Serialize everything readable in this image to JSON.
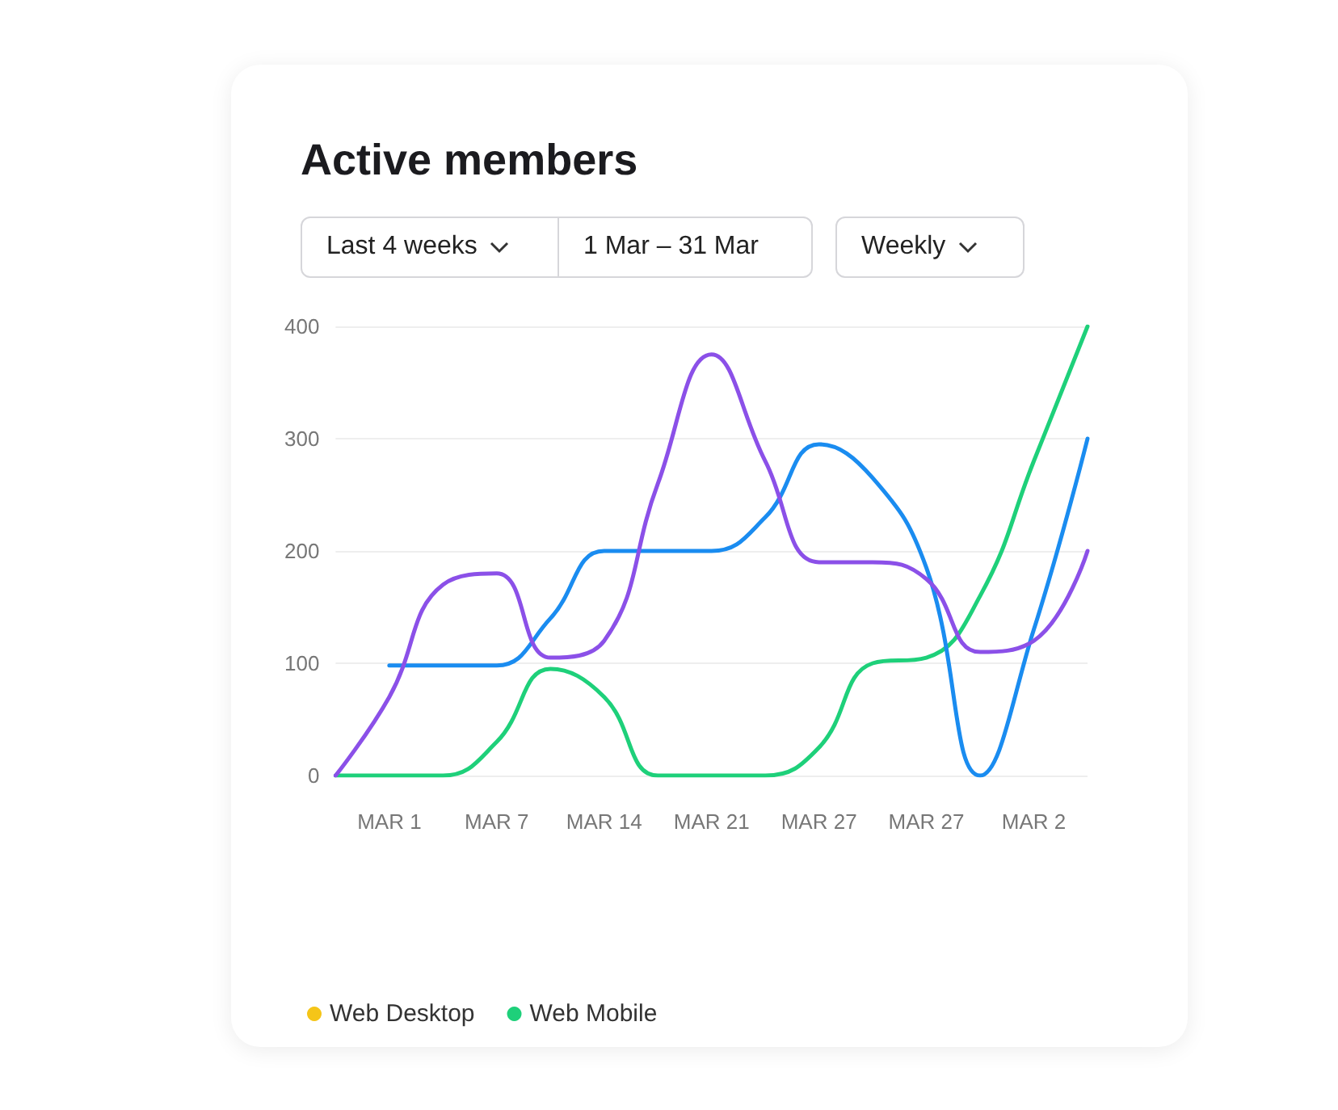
{
  "chart_data": {
    "type": "line",
    "title": "Active members",
    "annotations": [
      "Last 4 weeks",
      "1 Mar  –  31 Mar",
      "Weekly"
    ],
    "ylim": [
      0,
      400
    ],
    "yticks": [
      0,
      100,
      200,
      300,
      400
    ],
    "categories": [
      null,
      "MAR 1",
      null,
      "MAR 7",
      null,
      "MAR 14",
      null,
      "MAR 21",
      null,
      "MAR 27",
      null,
      "MAR 27",
      null,
      "MAR 2",
      null
    ],
    "grid": "y",
    "legend": "bottom",
    "marker": "none",
    "line_style": "solid",
    "series": [
      {
        "name": "Web Desktop",
        "color": "#f5c518",
        "values": [
          null,
          null,
          null,
          null,
          null,
          null,
          null,
          null,
          null,
          null,
          null,
          null,
          null,
          null,
          null
        ]
      },
      {
        "name": "Web Mobile",
        "color": "#1ed07a",
        "values": [
          0,
          0,
          0,
          30,
          95,
          70,
          0,
          0,
          0,
          25,
          100,
          105,
          160,
          280,
          400
        ]
      },
      {
        "color": "#1a8cf0",
        "values": [
          null,
          98,
          98,
          98,
          140,
          200,
          200,
          200,
          230,
          295,
          265,
          185,
          0,
          130,
          300
        ]
      },
      {
        "color": "#8b50e8",
        "values": [
          0,
          70,
          170,
          180,
          105,
          120,
          260,
          375,
          280,
          190,
          190,
          175,
          110,
          120,
          200
        ]
      }
    ]
  }
}
